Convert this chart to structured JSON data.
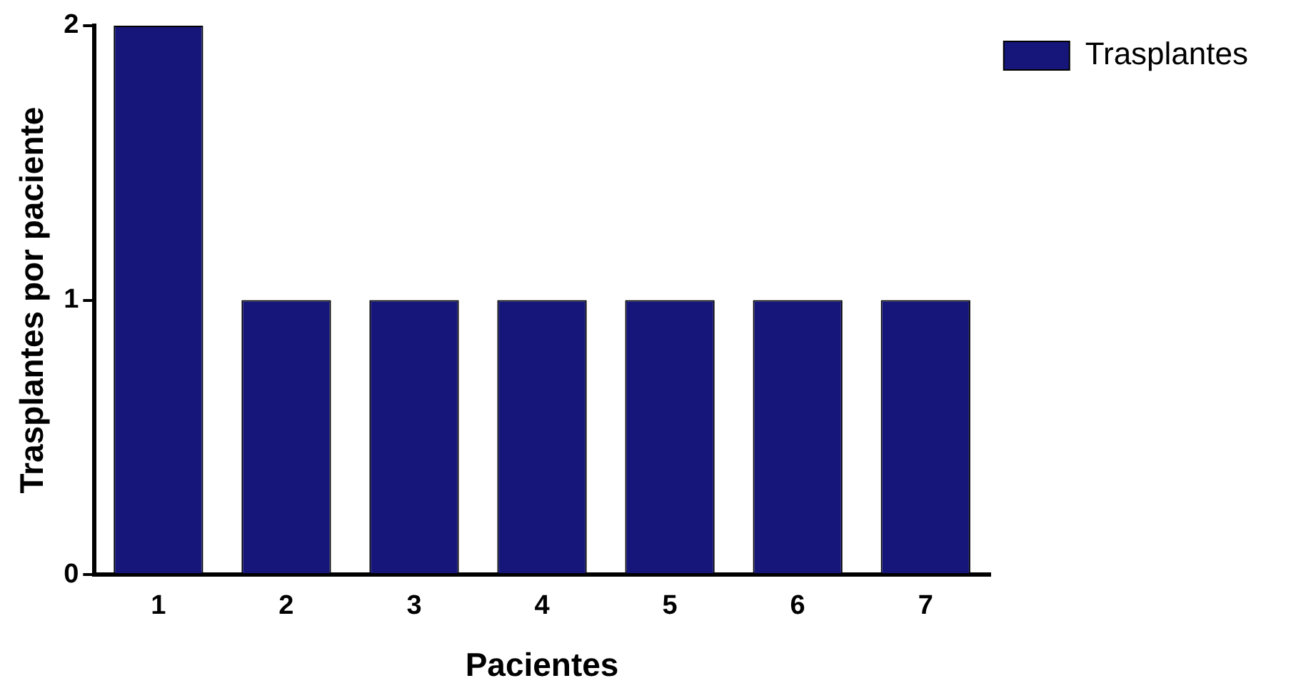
{
  "chart_data": {
    "type": "bar",
    "xlabel": "Pacientes",
    "ylabel": "Trasplantes por paciente",
    "categories": [
      "1",
      "2",
      "3",
      "4",
      "5",
      "6",
      "7"
    ],
    "series": [
      {
        "name": "Trasplantes",
        "color": "#16167a",
        "values": [
          2,
          1,
          1,
          1,
          1,
          1,
          1
        ]
      }
    ],
    "ylim": [
      0,
      2
    ],
    "yticks": [
      0,
      1,
      2
    ],
    "grid": false,
    "legend": "top right"
  }
}
